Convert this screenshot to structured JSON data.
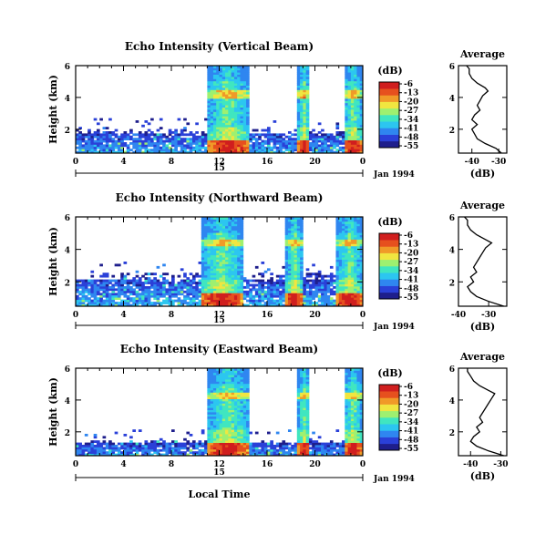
{
  "chart_data": [
    {
      "type": "heatmap",
      "title": "Echo Intensity (Vertical Beam)",
      "ylabel": "Height (km)",
      "x_ticks": [
        "0",
        "4",
        "8",
        "12",
        "16",
        "20",
        "0"
      ],
      "y_ticks": [
        "2",
        "4",
        "6"
      ],
      "xlim": [
        0,
        24
      ],
      "ylim": [
        0.5,
        6
      ],
      "date_row_ticks": [
        "15"
      ],
      "date_label": "Jan 1994",
      "colorbar": {
        "label": "(dB)",
        "ticks": [
          "-6",
          "-13",
          "-20",
          "-27",
          "-34",
          "-41",
          "-48",
          "-55"
        ]
      },
      "clear_air_top_km": 2.0,
      "precip_bands": [
        [
          11,
          14.5
        ],
        [
          18.6,
          19.6
        ],
        [
          22.4,
          24
        ]
      ],
      "bright_band_km": 4.2,
      "profile": {
        "title": "Average",
        "xlabel": "(dB)",
        "x_ticks": [
          "-40",
          "-30"
        ],
        "xlim": [
          -45,
          -27
        ],
        "y_ticks": [
          "2",
          "4",
          "6"
        ],
        "ylim": [
          0.5,
          6
        ],
        "points": [
          [
            -29,
            0.5
          ],
          [
            -31,
            0.8
          ],
          [
            -35,
            1.1
          ],
          [
            -38,
            1.4
          ],
          [
            -39,
            1.7
          ],
          [
            -40,
            2.0
          ],
          [
            -38,
            2.3
          ],
          [
            -40,
            2.6
          ],
          [
            -39,
            2.9
          ],
          [
            -37,
            3.2
          ],
          [
            -38,
            3.5
          ],
          [
            -37,
            3.8
          ],
          [
            -36,
            4.1
          ],
          [
            -34,
            4.4
          ],
          [
            -35,
            4.6
          ],
          [
            -38,
            4.9
          ],
          [
            -40,
            5.2
          ],
          [
            -41,
            5.5
          ],
          [
            -41,
            5.8
          ],
          [
            -42,
            6.0
          ]
        ]
      }
    },
    {
      "type": "heatmap",
      "title": "Echo Intensity (Northward Beam)",
      "ylabel": "Height (km)",
      "x_ticks": [
        "0",
        "4",
        "8",
        "12",
        "16",
        "20",
        "0"
      ],
      "y_ticks": [
        "2",
        "4",
        "6"
      ],
      "xlim": [
        0,
        24
      ],
      "ylim": [
        0.5,
        6
      ],
      "date_row_ticks": [
        "15"
      ],
      "date_label": "Jan 1994",
      "colorbar": {
        "label": "(dB)",
        "ticks": [
          "-6",
          "-13",
          "-20",
          "-27",
          "-34",
          "-41",
          "-48",
          "-55"
        ]
      },
      "clear_air_top_km": 2.6,
      "precip_bands": [
        [
          10.5,
          14
        ],
        [
          17.6,
          19
        ],
        [
          21.8,
          24
        ]
      ],
      "bright_band_km": 4.4,
      "profile": {
        "title": "Average",
        "xlabel": "(dB)",
        "x_ticks": [
          "-40",
          "-30"
        ],
        "xlim": [
          -40,
          -24
        ],
        "y_ticks": [
          "2",
          "4",
          "6"
        ],
        "ylim": [
          0.5,
          6
        ],
        "points": [
          [
            -25,
            0.5
          ],
          [
            -30,
            0.8
          ],
          [
            -34,
            1.1
          ],
          [
            -36,
            1.4
          ],
          [
            -37,
            1.7
          ],
          [
            -35,
            2.0
          ],
          [
            -36,
            2.3
          ],
          [
            -34,
            2.6
          ],
          [
            -35,
            2.9
          ],
          [
            -34,
            3.2
          ],
          [
            -33,
            3.5
          ],
          [
            -32,
            3.8
          ],
          [
            -31,
            4.1
          ],
          [
            -29,
            4.4
          ],
          [
            -31,
            4.6
          ],
          [
            -34,
            4.9
          ],
          [
            -36,
            5.2
          ],
          [
            -37,
            5.5
          ],
          [
            -37,
            5.8
          ],
          [
            -38,
            6.0
          ]
        ]
      }
    },
    {
      "type": "heatmap",
      "title": "Echo Intensity (Eastward Beam)",
      "ylabel": "Height (km)",
      "x_ticks": [
        "0",
        "4",
        "8",
        "12",
        "16",
        "20",
        "0"
      ],
      "y_ticks": [
        "2",
        "4",
        "6"
      ],
      "xlim": [
        0,
        24
      ],
      "ylim": [
        0.5,
        6
      ],
      "date_row_ticks": [
        "15"
      ],
      "date_label": "Jan 1994",
      "xlabel": "Local Time",
      "colorbar": {
        "label": "(dB)",
        "ticks": [
          "-6",
          "-13",
          "-20",
          "-27",
          "-34",
          "-41",
          "-48",
          "-55"
        ]
      },
      "clear_air_top_km": 1.5,
      "precip_bands": [
        [
          11,
          14.5
        ],
        [
          18.6,
          19.6
        ],
        [
          22.4,
          24
        ]
      ],
      "bright_band_km": 4.3,
      "profile": {
        "title": "Average",
        "xlabel": "(dB)",
        "x_ticks": [
          "-40",
          "-30"
        ],
        "xlim": [
          -44,
          -28
        ],
        "y_ticks": [
          "2",
          "4",
          "6"
        ],
        "ylim": [
          0.5,
          6
        ],
        "points": [
          [
            -29,
            0.5
          ],
          [
            -34,
            0.8
          ],
          [
            -38,
            1.1
          ],
          [
            -40,
            1.4
          ],
          [
            -39,
            1.7
          ],
          [
            -37,
            2.0
          ],
          [
            -38,
            2.3
          ],
          [
            -36,
            2.6
          ],
          [
            -37,
            2.9
          ],
          [
            -36,
            3.2
          ],
          [
            -35,
            3.5
          ],
          [
            -34,
            3.8
          ],
          [
            -33,
            4.1
          ],
          [
            -32,
            4.4
          ],
          [
            -34,
            4.6
          ],
          [
            -37,
            4.9
          ],
          [
            -39,
            5.2
          ],
          [
            -40,
            5.5
          ],
          [
            -41,
            5.8
          ],
          [
            -41,
            6.0
          ]
        ]
      }
    }
  ],
  "colormap": [
    "#1e1e8c",
    "#2a40d8",
    "#2f86f0",
    "#2cc6f0",
    "#40e6c0",
    "#9ef070",
    "#f0e640",
    "#f09a28",
    "#e6501e",
    "#d01e1e"
  ]
}
